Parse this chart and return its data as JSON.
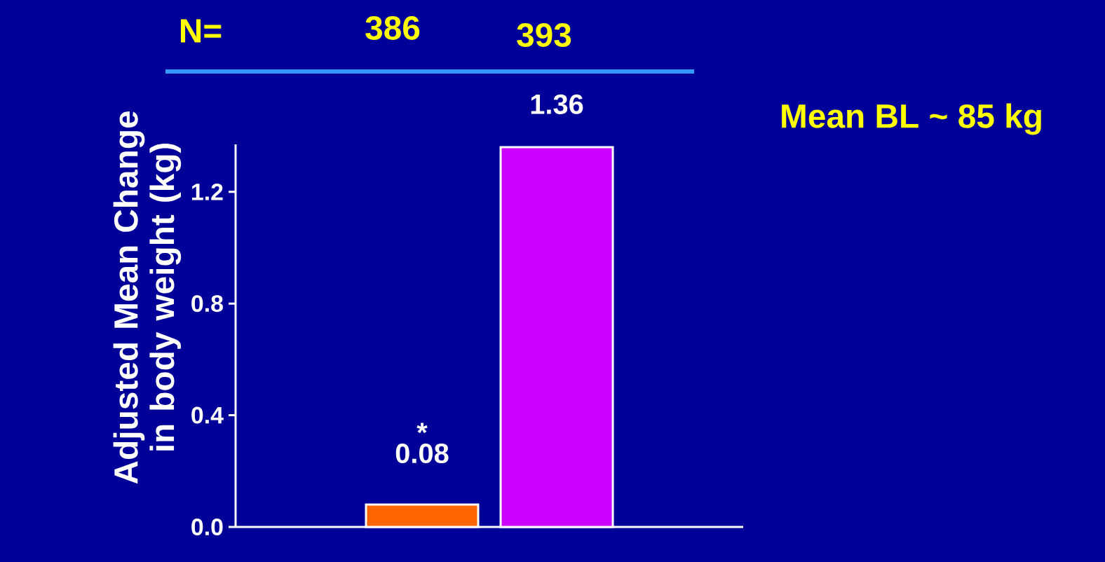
{
  "chart_data": {
    "type": "bar",
    "ylabel": "Adjusted Mean Change in  body weight (kg)",
    "categories": [
      null,
      null
    ],
    "values": [
      0.08,
      1.36
    ],
    "colors": [
      "#ff6600",
      "#cc00ff"
    ],
    "data_labels": true,
    "ylim": [
      0,
      1.37
    ],
    "yticks": [
      {
        "value": 0,
        "label": "0.0"
      },
      0.4,
      0.8,
      1.2
    ],
    "annotations": [
      "N=",
      "386",
      "393",
      "*",
      "Mean BL  ~ 85 kg"
    ]
  }
}
